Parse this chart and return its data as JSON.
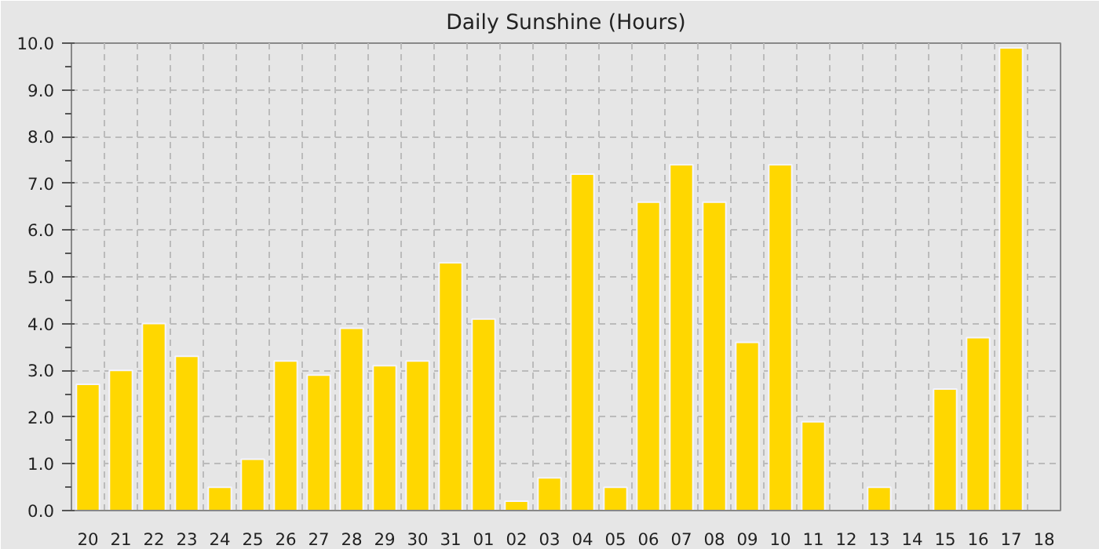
{
  "chart_data": {
    "type": "bar",
    "title": "Daily Sunshine (Hours)",
    "categories": [
      "20",
      "21",
      "22",
      "23",
      "24",
      "25",
      "26",
      "27",
      "28",
      "29",
      "30",
      "31",
      "01",
      "02",
      "03",
      "04",
      "05",
      "06",
      "07",
      "08",
      "09",
      "10",
      "11",
      "12",
      "13",
      "14",
      "15",
      "16",
      "17",
      "18"
    ],
    "values": [
      2.7,
      3.0,
      4.0,
      3.3,
      0.5,
      1.1,
      3.2,
      2.9,
      3.9,
      3.1,
      3.2,
      5.3,
      4.1,
      0.2,
      0.7,
      7.2,
      0.5,
      6.6,
      7.4,
      6.6,
      3.6,
      7.4,
      1.9,
      null,
      0.5,
      null,
      2.6,
      3.7,
      9.9,
      null
    ],
    "color": "#ffd700",
    "ylim": [
      0,
      10
    ],
    "yticks": [
      {
        "value": 0,
        "label": "0.0"
      },
      {
        "value": 1,
        "label": "1.0"
      },
      {
        "value": 2,
        "label": "2.0"
      },
      {
        "value": 3,
        "label": "3.0"
      },
      {
        "value": 4,
        "label": "4.0"
      },
      {
        "value": 5,
        "label": "5.0"
      },
      {
        "value": 6,
        "label": "6.0"
      },
      {
        "value": 7,
        "label": "7.0"
      },
      {
        "value": 8,
        "label": "8.0"
      },
      {
        "value": 9,
        "label": "9.0"
      },
      {
        "value": 10,
        "label": "10.0"
      }
    ],
    "grid": true
  }
}
